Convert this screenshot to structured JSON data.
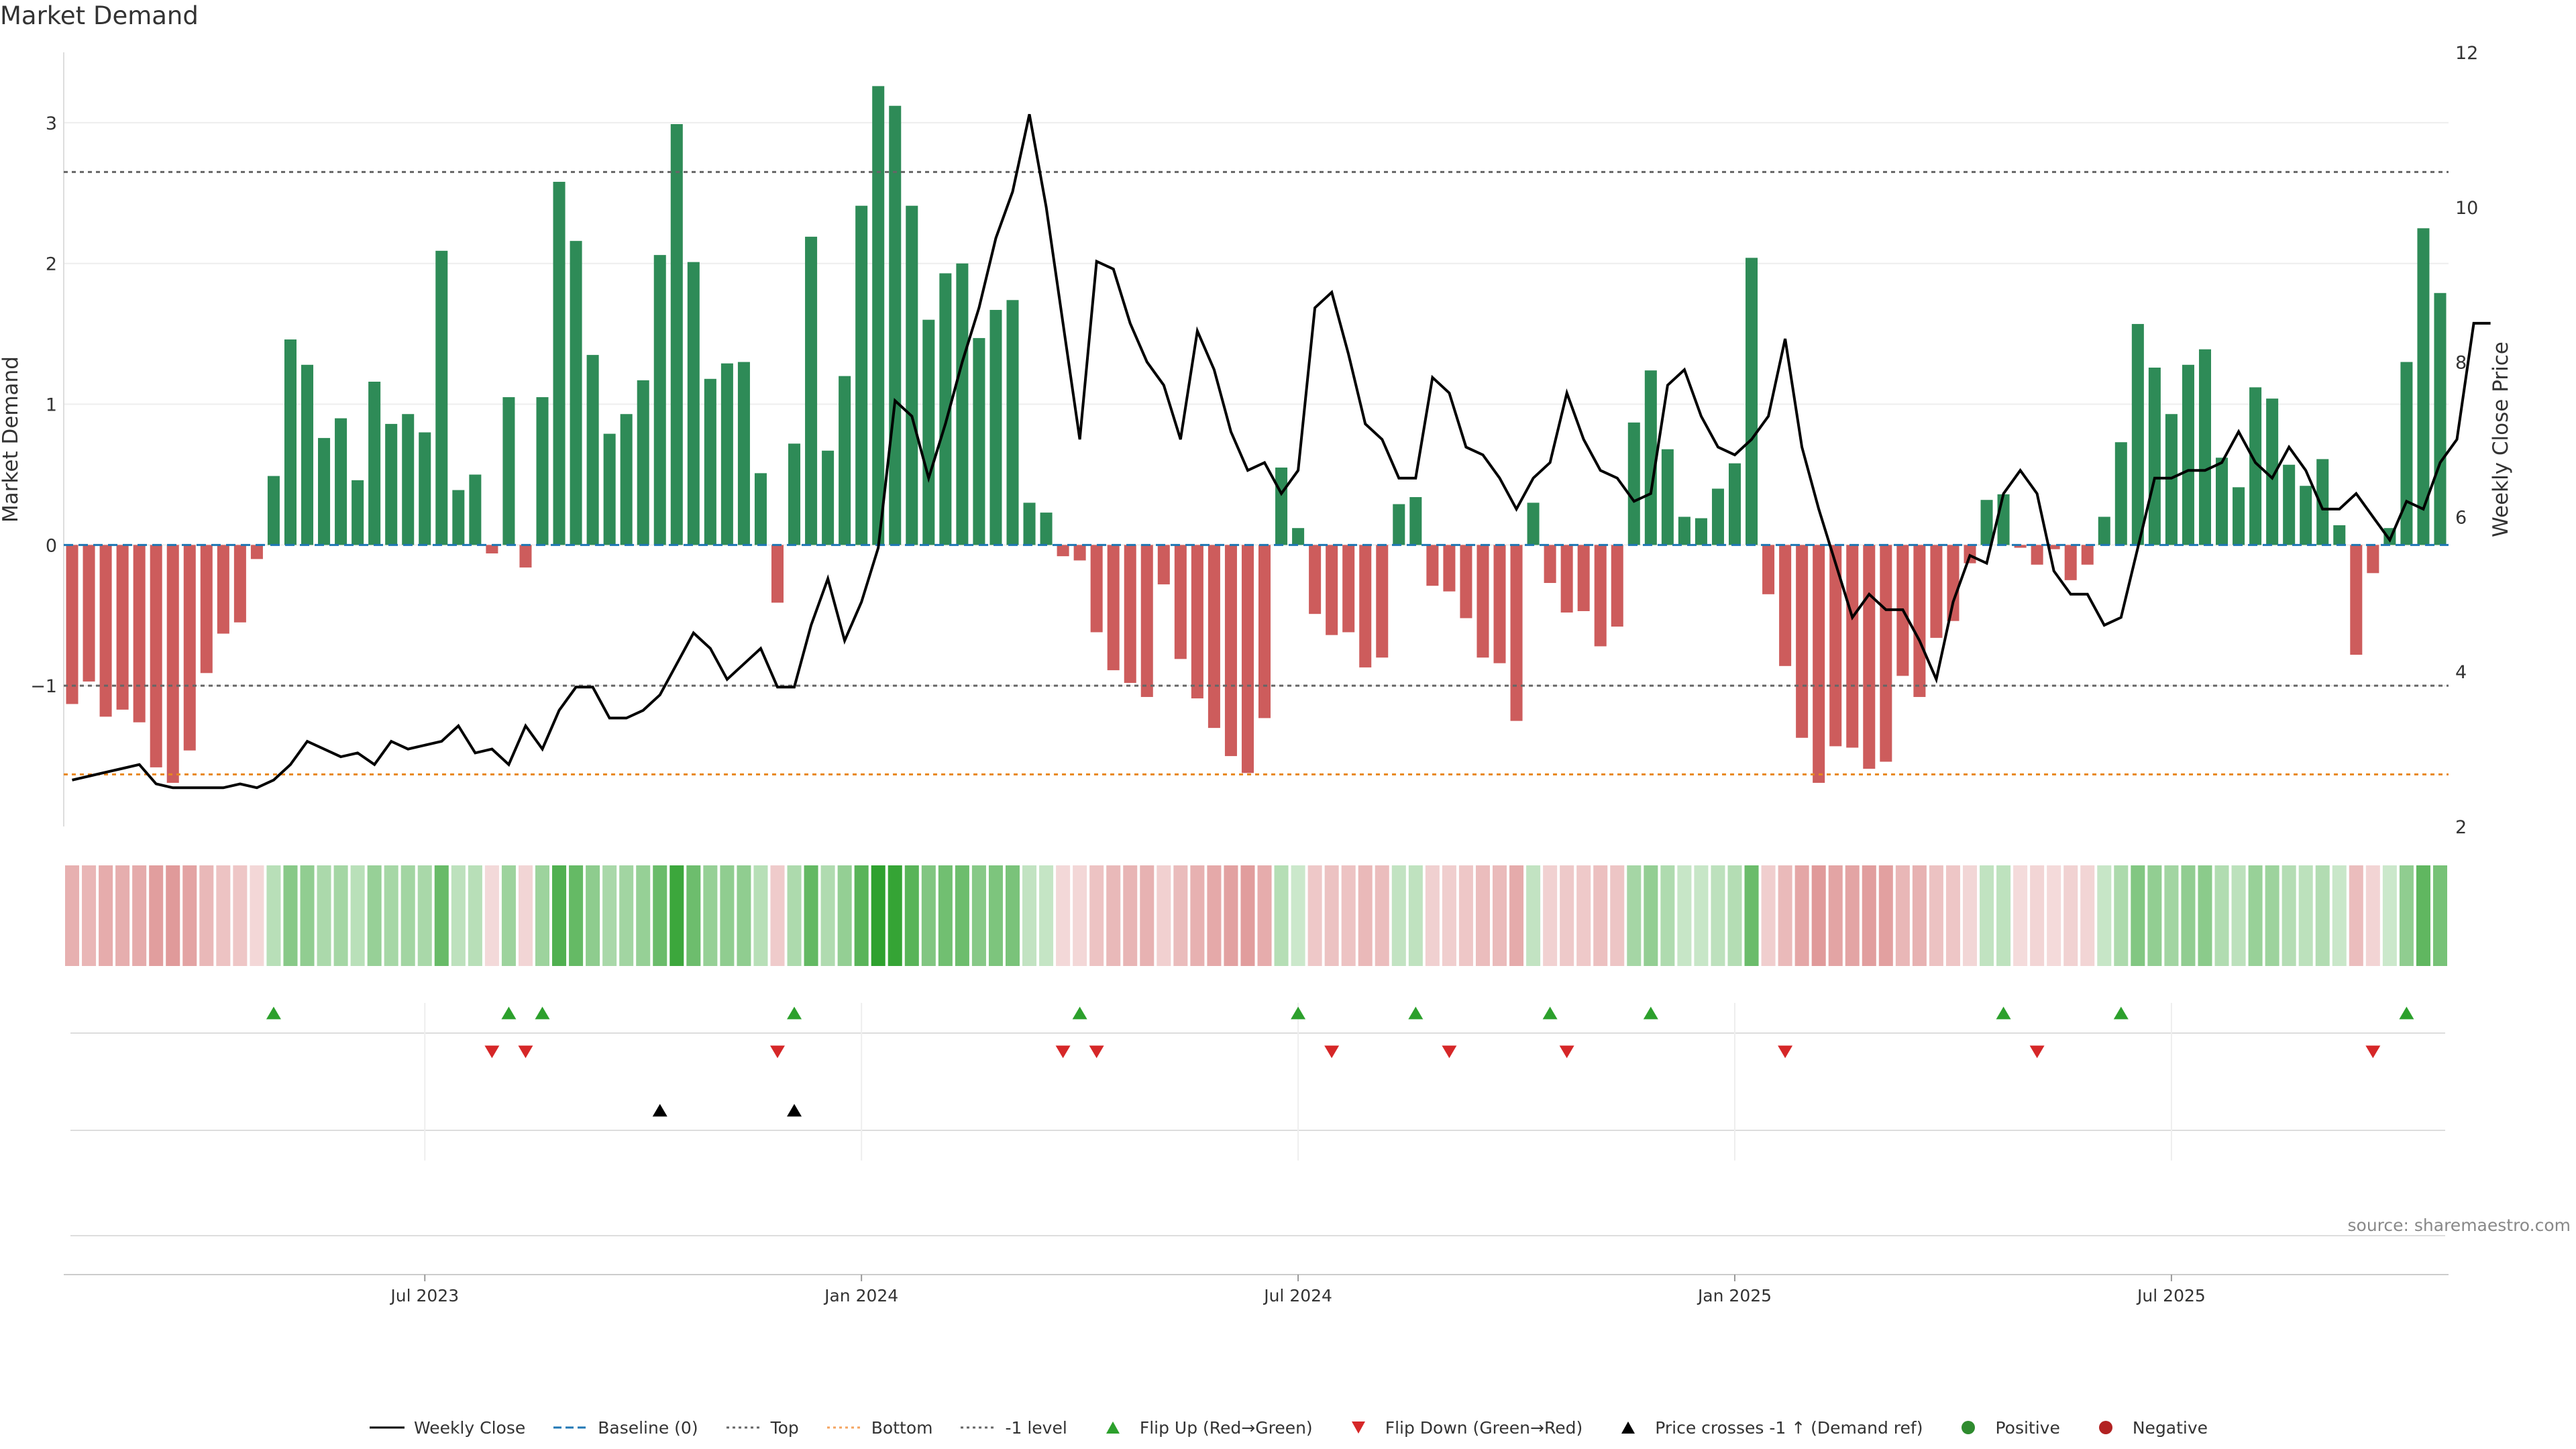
{
  "title": "Market Demand",
  "source": "source: sharemaestro.com",
  "colors": {
    "positive_bar": "#2e8b57",
    "negative_bar": "#cd5c5c",
    "price_line": "#000000",
    "bottom_line": "#f4a460",
    "dotted_levels": "#666666",
    "flip_up": "#2ca02c",
    "flip_down": "#d62728",
    "cross": "#000000"
  },
  "chart_data": {
    "type": "bar",
    "title": "Market Demand",
    "ylabel": "Market Demand",
    "y2label": "Weekly Close Price",
    "ylim": [
      -2,
      3.5
    ],
    "y2lim": [
      2,
      12
    ],
    "yticks": [
      -1,
      0,
      1,
      2,
      3
    ],
    "y2ticks": [
      2,
      4,
      6,
      8,
      10,
      12
    ],
    "x_tick_labels": [
      "Jul 2023",
      "Jan 2024",
      "Jul 2024",
      "Jan 2025",
      "Jul 2025"
    ],
    "x_tick_index": [
      21,
      47,
      73,
      99,
      125
    ],
    "levels": {
      "top": 2.65,
      "minus_one": -1.0,
      "bottom": -1.63,
      "baseline": 0
    },
    "demand": [
      -1.13,
      -0.97,
      -1.22,
      -1.17,
      -1.26,
      -1.58,
      -1.69,
      -1.46,
      -0.91,
      -0.63,
      -0.55,
      -0.1,
      0.49,
      1.46,
      1.28,
      0.76,
      0.9,
      0.46,
      1.16,
      0.86,
      0.93,
      0.8,
      2.09,
      0.39,
      0.5,
      -0.06,
      1.05,
      -0.16,
      1.05,
      2.58,
      2.16,
      1.35,
      0.79,
      0.93,
      1.17,
      2.06,
      2.99,
      2.01,
      1.18,
      1.29,
      1.3,
      0.51,
      -0.41,
      0.72,
      2.19,
      0.67,
      1.2,
      2.41,
      3.26,
      3.12,
      2.41,
      1.6,
      1.93,
      2.0,
      1.47,
      1.67,
      1.74,
      0.3,
      0.23,
      -0.08,
      -0.11,
      -0.62,
      -0.89,
      -0.98,
      -1.08,
      -0.28,
      -0.81,
      -1.09,
      -1.3,
      -1.5,
      -1.62,
      -1.23,
      0.55,
      0.12,
      -0.49,
      -0.64,
      -0.62,
      -0.87,
      -0.8,
      0.29,
      0.34,
      -0.29,
      -0.33,
      -0.52,
      -0.8,
      -0.84,
      -1.25,
      0.3,
      -0.27,
      -0.48,
      -0.47,
      -0.72,
      -0.58,
      0.87,
      1.24,
      0.68,
      0.2,
      0.19,
      0.4,
      0.58,
      2.04,
      -0.35,
      -0.86,
      -1.37,
      -1.69,
      -1.43,
      -1.44,
      -1.59,
      -1.54,
      -0.93,
      -1.08,
      -0.66,
      -0.54,
      -0.13,
      0.32,
      0.36,
      -0.02,
      -0.14,
      -0.03,
      -0.25,
      -0.14,
      0.2,
      0.73,
      1.57,
      1.26,
      0.93,
      1.28,
      1.39,
      0.62,
      0.41,
      1.12,
      1.04,
      0.57,
      0.42,
      0.61,
      0.14,
      -0.78,
      -0.2,
      0.12,
      1.3,
      2.25,
      1.79
    ],
    "price": [
      2.6,
      2.65,
      2.7,
      2.75,
      2.8,
      2.55,
      2.5,
      2.5,
      2.5,
      2.5,
      2.55,
      2.5,
      2.6,
      2.8,
      3.1,
      3.0,
      2.9,
      2.95,
      2.8,
      3.1,
      3.0,
      3.05,
      3.1,
      3.3,
      2.95,
      3.0,
      2.8,
      3.3,
      3.0,
      3.5,
      3.8,
      3.8,
      3.4,
      3.4,
      3.5,
      3.7,
      4.1,
      4.5,
      4.3,
      3.9,
      4.1,
      4.3,
      3.8,
      3.8,
      4.6,
      5.2,
      4.4,
      4.9,
      5.6,
      7.5,
      7.3,
      6.5,
      7.2,
      8.0,
      8.7,
      9.6,
      10.2,
      11.2,
      10.0,
      8.5,
      7.0,
      9.3,
      9.2,
      8.5,
      8.0,
      7.7,
      7.0,
      8.4,
      7.9,
      7.1,
      6.6,
      6.7,
      6.3,
      6.6,
      8.7,
      8.9,
      8.1,
      7.2,
      7.0,
      6.5,
      6.5,
      7.8,
      7.6,
      6.9,
      6.8,
      6.5,
      6.1,
      6.5,
      6.7,
      7.6,
      7.0,
      6.6,
      6.5,
      6.2,
      6.3,
      7.7,
      7.9,
      7.3,
      6.9,
      6.8,
      7.0,
      7.3,
      8.3,
      6.9,
      6.1,
      5.4,
      4.7,
      5.0,
      4.8,
      4.8,
      4.4,
      3.9,
      4.9,
      5.5,
      5.4,
      6.3,
      6.6,
      6.3,
      5.3,
      5.0,
      5.0,
      4.6,
      4.7,
      5.6,
      6.5,
      6.5,
      6.6,
      6.6,
      6.7,
      7.1,
      6.7,
      6.5,
      6.9,
      6.6,
      6.1,
      6.1,
      6.3,
      6.0,
      5.7,
      6.2,
      6.1,
      6.7,
      7.0,
      8.5,
      8.5
    ]
  },
  "signals": {
    "flip_up": [
      12,
      26,
      28,
      43,
      60,
      73,
      80,
      88,
      94,
      115,
      122,
      139
    ],
    "flip_down": [
      25,
      27,
      42,
      59,
      61,
      75,
      82,
      89,
      102,
      117,
      137
    ],
    "price_crosses": [
      35,
      43
    ]
  },
  "legend": [
    {
      "label": "Weekly Close",
      "kind": "line-solid",
      "color": "#000000"
    },
    {
      "label": "Baseline (0)",
      "kind": "line-dashed",
      "color": "#1f77b4"
    },
    {
      "label": "Top",
      "kind": "line-dotted",
      "color": "#666666"
    },
    {
      "label": "Bottom",
      "kind": "line-dotted",
      "color": "#f4a460"
    },
    {
      "label": "-1 level",
      "kind": "line-dotted",
      "color": "#666666"
    },
    {
      "label": "Flip Up (Red→Green)",
      "kind": "tri-up",
      "color": "#2ca02c"
    },
    {
      "label": "Flip Down (Green→Red)",
      "kind": "tri-down",
      "color": "#d62728"
    },
    {
      "label": "Price crosses -1 ↑ (Demand ref)",
      "kind": "tri-up",
      "color": "#000000"
    },
    {
      "label": "Positive",
      "kind": "dot",
      "color": "#2e8b2e"
    },
    {
      "label": "Negative",
      "kind": "dot",
      "color": "#b22222"
    }
  ]
}
